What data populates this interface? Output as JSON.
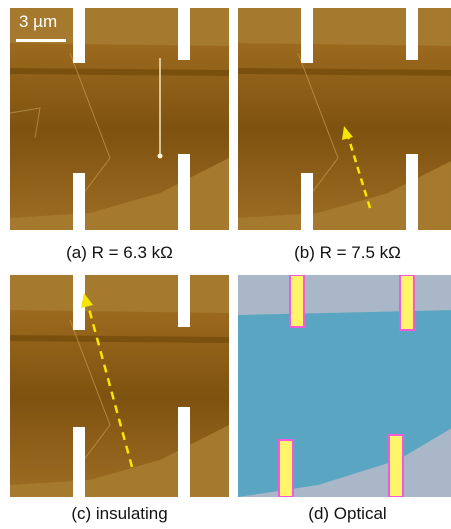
{
  "scale_bar": {
    "label": "3 µm"
  },
  "panels": [
    {
      "id": "a",
      "caption": "(a) R = 6.3 kΩ",
      "kind": "afm"
    },
    {
      "id": "b",
      "caption": "(b) R = 7.5 kΩ",
      "kind": "afm",
      "arrow": "short"
    },
    {
      "id": "c",
      "caption": "(c) insulating",
      "kind": "afm",
      "arrow": "long"
    },
    {
      "id": "d",
      "caption": "(d) Optical",
      "kind": "optical"
    }
  ],
  "colors": {
    "afm_dark": "#4a2a06",
    "afm_mid": "#8a5a14",
    "afm_light": "#b88a3a",
    "flake_optical": "#5aa5c2",
    "substrate_optical": "#a9b7c9",
    "contact": "#ffffff",
    "arrow": "#f7e600"
  }
}
